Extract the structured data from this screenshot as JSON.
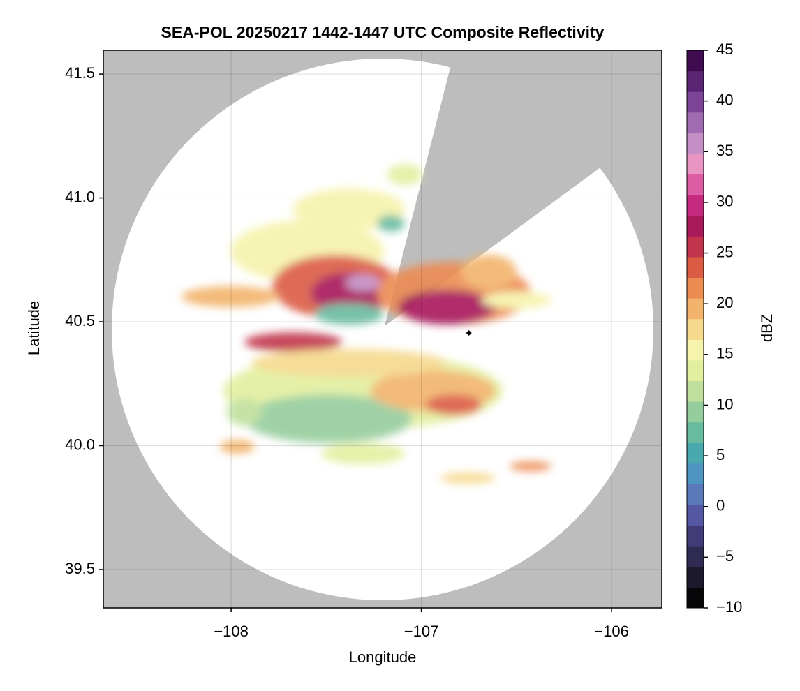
{
  "chart_data": {
    "type": "radar-map",
    "title": "SEA-POL 20250217 1442-1447 UTC Composite Reflectivity",
    "x_label": "Longitude",
    "y_label": "Latitude",
    "xlim": [
      -108.672,
      -105.736
    ],
    "ylim": [
      39.345,
      41.596
    ],
    "xticks": [
      {
        "value": -108,
        "label": "−108"
      },
      {
        "value": -107,
        "label": "−107"
      },
      {
        "value": -106,
        "label": "−106"
      }
    ],
    "yticks": [
      39.5,
      {
        "value": 40.0,
        "label": "40.0"
      },
      40.5,
      {
        "value": 41.0,
        "label": "41.0"
      },
      41.5
    ],
    "grid": true,
    "points": {
      "x": [
        -106.75
      ],
      "y": [
        40.455
      ],
      "color": "#000000"
    },
    "colorbar": {
      "label": "dBZ",
      "lim": [
        -10,
        45
      ],
      "ticks": [
        {
          "value": -10,
          "label": "−10"
        },
        {
          "value": -5,
          "label": "−5"
        },
        0,
        5,
        10,
        15,
        20,
        25,
        30,
        35,
        40,
        45
      ],
      "colors": [
        "#07070a",
        "#1d1a2e",
        "#2f2b52",
        "#413c78",
        "#5457a2",
        "#5b78b8",
        "#4f95c2",
        "#4aa9ae",
        "#69bba0",
        "#96cd9d",
        "#bfe09c",
        "#e2ef9f",
        "#f6f3ac",
        "#f5d98c",
        "#f2b46c",
        "#ec8c52",
        "#dc5b45",
        "#c1344b",
        "#a8195a",
        "#c52a7e",
        "#dd5ca3",
        "#e895c4",
        "#c48fc4",
        "#a06bb0",
        "#7c4496",
        "#5a2473",
        "#3e0c4f"
      ]
    }
  }
}
